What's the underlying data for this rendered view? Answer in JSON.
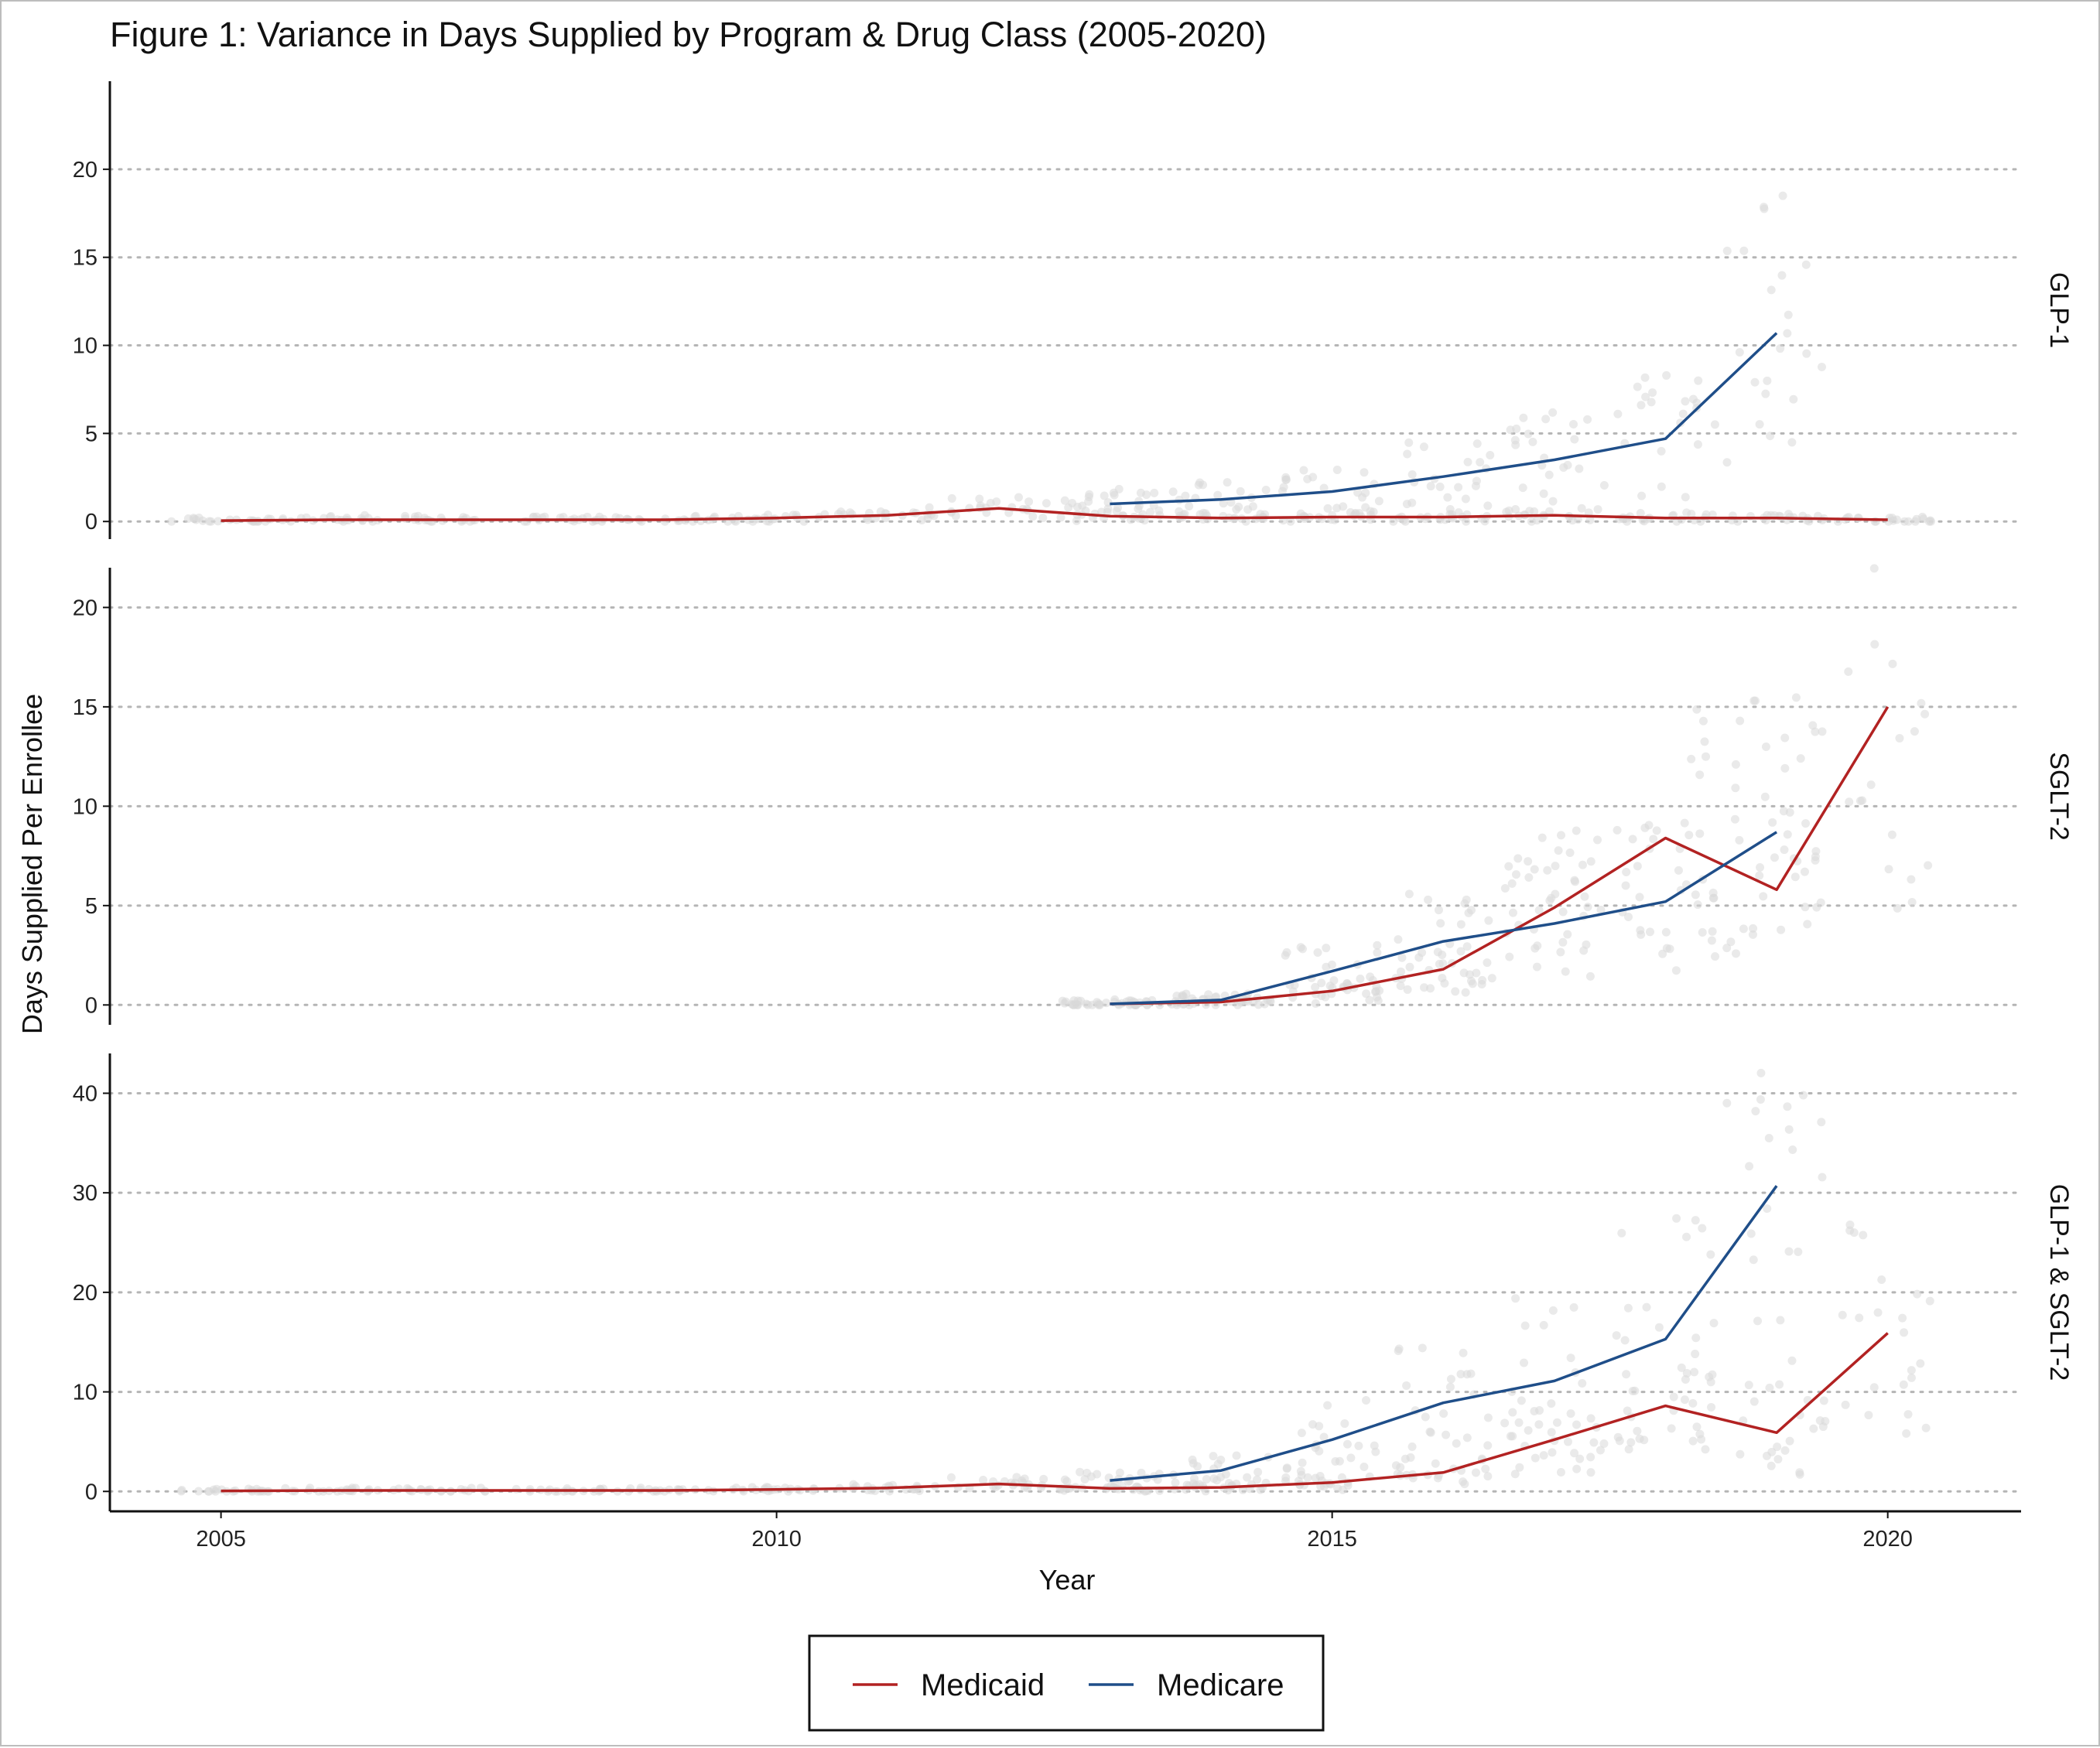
{
  "chart_data": {
    "type": "line",
    "title": "Figure 1: Variance in Days Supplied by Program & Drug Class (2005-2020)",
    "xlabel": "Year",
    "ylabel": "Days Supplied Per Enrollee",
    "xlim": [
      2004,
      2021.2
    ],
    "x_ticks": [
      2005,
      2010,
      2015,
      2020
    ],
    "grid": "horizontal dotted",
    "legend_position": "bottom",
    "colors": {
      "Medicaid": "#b22222",
      "Medicare": "#1f4e89",
      "points": "#d9d9d9"
    },
    "panels": [
      {
        "label": "GLP-1",
        "ylim": [
          -1,
          25
        ],
        "y_ticks": [
          0,
          5,
          10,
          15,
          20
        ],
        "series": [
          {
            "name": "Medicaid",
            "x": [
              2005,
              2006,
              2007,
              2008,
              2009,
              2010,
              2011,
              2012,
              2013,
              2014,
              2015,
              2016,
              2017,
              2018,
              2019,
              2020
            ],
            "values": [
              0.05,
              0.1,
              0.1,
              0.1,
              0.1,
              0.2,
              0.35,
              0.75,
              0.3,
              0.2,
              0.25,
              0.25,
              0.35,
              0.2,
              0.2,
              0.1
            ]
          },
          {
            "name": "Medicare",
            "x": [
              2013,
              2014,
              2015,
              2016,
              2017,
              2018,
              2019
            ],
            "values": [
              1.0,
              1.25,
              1.7,
              2.55,
              3.5,
              4.7,
              10.7
            ]
          }
        ]
      },
      {
        "label": "SGLT-2",
        "ylim": [
          -1,
          22
        ],
        "y_ticks": [
          0,
          5,
          10,
          15,
          20
        ],
        "series": [
          {
            "name": "Medicaid",
            "x": [
              2013,
              2014,
              2015,
              2016,
              2017,
              2018,
              2019,
              2020
            ],
            "values": [
              0.05,
              0.15,
              0.7,
              1.8,
              4.9,
              8.4,
              5.8,
              15.0
            ]
          },
          {
            "name": "Medicare",
            "x": [
              2013,
              2014,
              2015,
              2016,
              2017,
              2018,
              2019
            ],
            "values": [
              0.05,
              0.25,
              1.7,
              3.2,
              4.1,
              5.2,
              8.7
            ]
          }
        ]
      },
      {
        "label": "GLP-1 & SGLT-2",
        "ylim": [
          -2,
          44
        ],
        "y_ticks": [
          0,
          10,
          20,
          30,
          40
        ],
        "series": [
          {
            "name": "Medicaid",
            "x": [
              2005,
              2006,
              2007,
              2008,
              2009,
              2010,
              2011,
              2012,
              2013,
              2014,
              2015,
              2016,
              2017,
              2018,
              2019,
              2020
            ],
            "values": [
              0.05,
              0.1,
              0.1,
              0.1,
              0.1,
              0.2,
              0.35,
              0.75,
              0.3,
              0.4,
              0.9,
              1.9,
              5.2,
              8.6,
              5.9,
              15.9
            ]
          },
          {
            "name": "Medicare",
            "x": [
              2013,
              2014,
              2015,
              2016,
              2017,
              2018,
              2019
            ],
            "values": [
              1.1,
              2.1,
              5.2,
              8.9,
              11.1,
              15.3,
              30.7
            ]
          }
        ]
      }
    ]
  },
  "legend": {
    "items": [
      {
        "label": "Medicaid",
        "color": "#b22222"
      },
      {
        "label": "Medicare",
        "color": "#1f4e89"
      }
    ]
  }
}
